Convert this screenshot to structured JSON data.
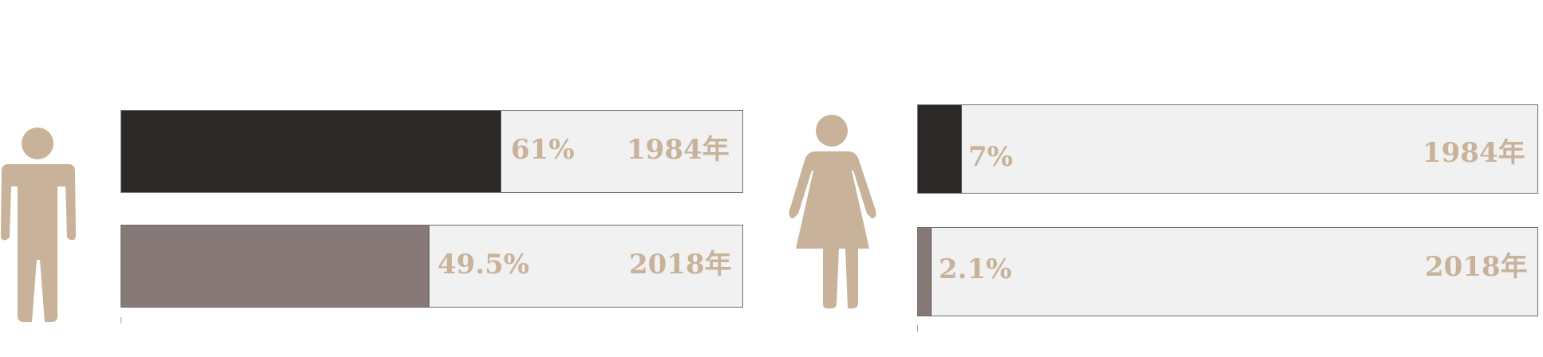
{
  "colors": {
    "icon": "#c9b29a",
    "label": "#c9b29a",
    "track": "#f1f1f1",
    "series_1984": "#2d2828",
    "series_2018": "#877977"
  },
  "chart_data": [
    {
      "type": "bar",
      "orientation": "horizontal",
      "icon": "male-icon",
      "xlim": [
        0,
        100
      ],
      "bars": [
        {
          "category": "1984年",
          "value": 61,
          "label": "61%",
          "color": "#2d2828"
        },
        {
          "category": "2018年",
          "value": 49.5,
          "label": "49.5%",
          "color": "#877977"
        }
      ]
    },
    {
      "type": "bar",
      "orientation": "horizontal",
      "icon": "female-icon",
      "xlim": [
        0,
        100
      ],
      "bars": [
        {
          "category": "1984年",
          "value": 7,
          "label": "7%",
          "color": "#2d2828"
        },
        {
          "category": "2018年",
          "value": 2.1,
          "label": "2.1%",
          "color": "#877977"
        }
      ]
    }
  ]
}
